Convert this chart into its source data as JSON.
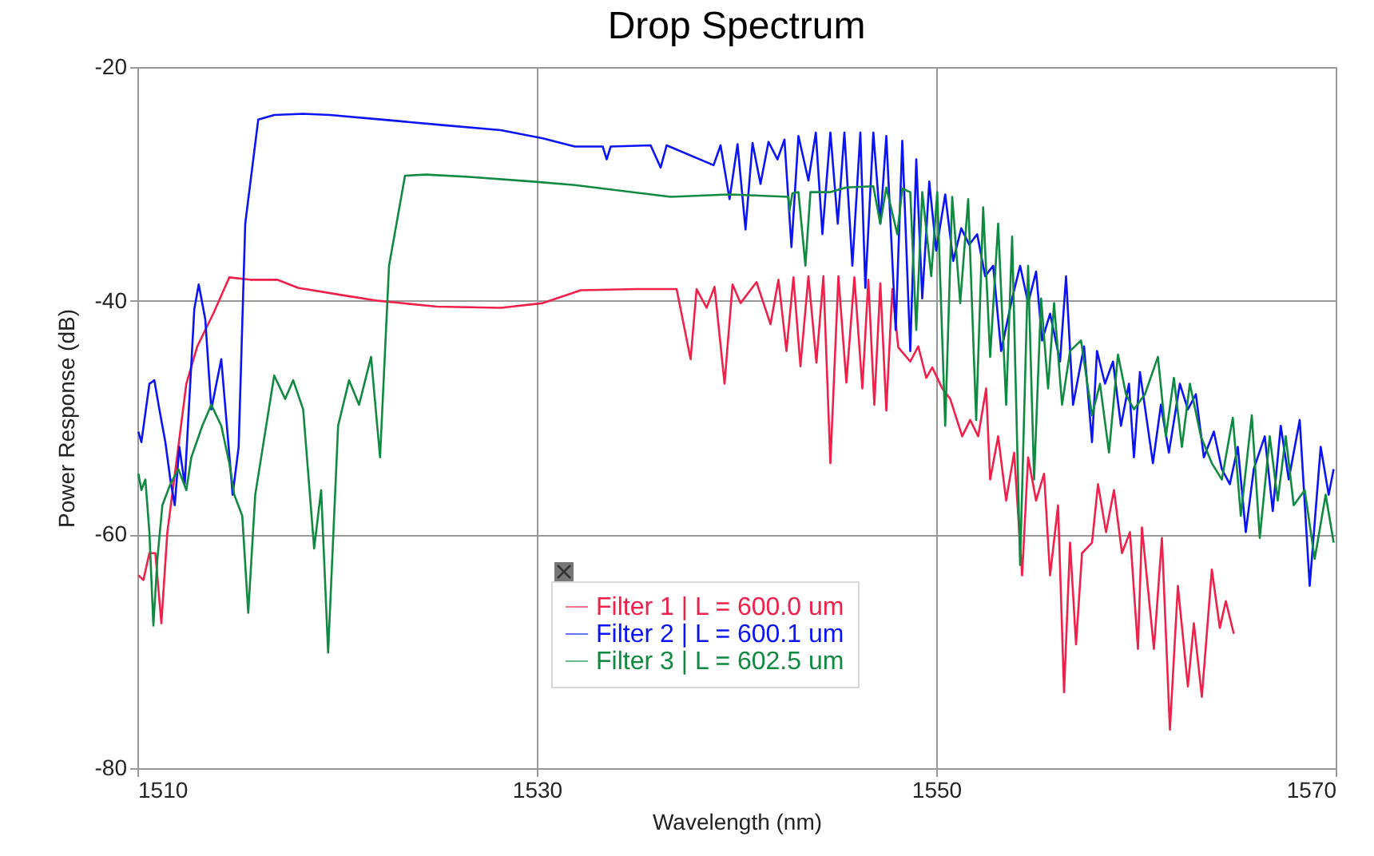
{
  "chart_data": {
    "type": "line",
    "title": "Drop Spectrum",
    "xlabel": "Wavelength (nm)",
    "ylabel": "Power Response (dB)",
    "xlim": [
      1510,
      1570
    ],
    "xticks": [
      1510,
      1530,
      1550,
      1570
    ],
    "ylim": [
      -80,
      -20
    ],
    "yticks": [
      -80,
      -60,
      -40,
      -20
    ],
    "grid": true,
    "legend": "bottom",
    "marker": "none",
    "line_style": "solid",
    "series": [
      {
        "name": "Filter 1 | L = 600.0 um",
        "color": "#f0204a",
        "x": [
          1510.05,
          1510.3,
          1510.6,
          1510.9,
          1511.2,
          1511.5,
          1512.05,
          1512.45,
          1513.0,
          1513.8,
          1514.6,
          1515.65,
          1517.0,
          1518.05,
          1520.2,
          1522.05,
          1525.0,
          1528.2,
          1530.3,
          1532.2,
          1535.0,
          1537.0,
          1537.7,
          1538.0,
          1538.5,
          1538.9,
          1539.4,
          1539.8,
          1540.2,
          1541.0,
          1541.7,
          1542.1,
          1542.5,
          1542.85,
          1543.2,
          1543.6,
          1544.0,
          1544.35,
          1544.7,
          1545.1,
          1545.5,
          1545.9,
          1546.3,
          1546.6,
          1546.9,
          1547.2,
          1547.5,
          1547.8,
          1548.1,
          1548.7,
          1549.1,
          1549.5,
          1549.8,
          1550.3,
          1550.7,
          1551.3,
          1551.7,
          1552.1,
          1552.5,
          1552.7,
          1553.1,
          1553.5,
          1553.9,
          1554.3,
          1554.6,
          1555.0,
          1555.4,
          1555.7,
          1556.1,
          1556.4,
          1556.7,
          1557.0,
          1557.3,
          1557.8,
          1558.1,
          1558.5,
          1558.9,
          1559.3,
          1559.7,
          1560.1,
          1560.3,
          1560.9,
          1561.3,
          1561.7,
          1562.1,
          1562.6,
          1562.9,
          1563.3,
          1563.8,
          1564.2,
          1564.5,
          1564.9
        ],
        "values": [
          -63.5,
          -63.9,
          -61.6,
          -61.6,
          -67.6,
          -59.8,
          -52.5,
          -47.1,
          -43.9,
          -41.1,
          -38.0,
          -38.2,
          -38.2,
          -38.9,
          -39.5,
          -40.0,
          -40.5,
          -40.6,
          -40.2,
          -39.1,
          -39.0,
          -39.0,
          -45.0,
          -39.0,
          -40.6,
          -38.8,
          -47.1,
          -38.6,
          -40.2,
          -38.4,
          -42.0,
          -38.2,
          -44.3,
          -38.0,
          -45.6,
          -37.9,
          -45.3,
          -37.9,
          -53.9,
          -37.9,
          -47.0,
          -38.0,
          -47.5,
          -38.2,
          -48.9,
          -38.5,
          -49.4,
          -39.0,
          -44.0,
          -45.2,
          -43.9,
          -46.6,
          -45.7,
          -47.5,
          -48.4,
          -51.6,
          -50.2,
          -51.6,
          -47.5,
          -55.3,
          -51.6,
          -57.1,
          -53.0,
          -63.5,
          -53.4,
          -57.1,
          -54.8,
          -63.5,
          -57.5,
          -73.5,
          -60.7,
          -69.4,
          -61.6,
          -60.7,
          -55.7,
          -59.8,
          -56.2,
          -61.6,
          -59.8,
          -69.8,
          -59.4,
          -69.8,
          -60.3,
          -76.7,
          -64.4,
          -73.0,
          -67.6,
          -73.9,
          -63.0,
          -68.0,
          -65.7,
          -68.5
        ]
      },
      {
        "name": "Filter 2 | L = 600.1 um",
        "color": "#0a14f5",
        "x": [
          1510.05,
          1510.2,
          1510.6,
          1510.85,
          1511.1,
          1511.4,
          1511.65,
          1511.87,
          1512.1,
          1512.37,
          1512.85,
          1513.07,
          1513.4,
          1513.7,
          1514.2,
          1514.77,
          1515.07,
          1515.4,
          1516.05,
          1516.85,
          1518.3,
          1519.65,
          1522.3,
          1525.5,
          1528.2,
          1530.3,
          1531.9,
          1533.3,
          1533.5,
          1533.7,
          1535.7,
          1536.2,
          1536.5,
          1538.85,
          1539.2,
          1539.65,
          1540.05,
          1540.45,
          1540.8,
          1541.2,
          1541.6,
          1542.05,
          1542.4,
          1542.75,
          1543.1,
          1543.6,
          1543.97,
          1544.3,
          1544.7,
          1545.07,
          1545.4,
          1545.8,
          1546.2,
          1546.45,
          1546.85,
          1547.2,
          1547.5,
          1547.97,
          1548.3,
          1548.7,
          1549.0,
          1549.3,
          1549.65,
          1550.0,
          1550.45,
          1550.85,
          1551.25,
          1551.65,
          1552.05,
          1552.45,
          1552.85,
          1553.25,
          1553.8,
          1554.2,
          1554.6,
          1555.0,
          1555.3,
          1555.7,
          1556.2,
          1556.5,
          1556.85,
          1557.4,
          1557.8,
          1558.05,
          1558.45,
          1558.85,
          1559.25,
          1559.65,
          1559.9,
          1560.2,
          1560.85,
          1561.25,
          1561.65,
          1562.2,
          1562.6,
          1563.0,
          1563.4,
          1563.9,
          1564.3,
          1564.7,
          1565.1,
          1565.5,
          1565.9,
          1566.45,
          1566.85,
          1567.25,
          1567.65,
          1568.2,
          1568.7,
          1569.25,
          1569.65,
          1569.9
        ],
        "values": [
          -51.2,
          -52.1,
          -47.1,
          -46.8,
          -49.3,
          -52.1,
          -55.3,
          -57.5,
          -52.5,
          -55.7,
          -40.7,
          -38.6,
          -41.6,
          -49.3,
          -45.0,
          -56.6,
          -52.5,
          -33.4,
          -24.5,
          -24.1,
          -24.0,
          -24.1,
          -24.5,
          -25.0,
          -25.4,
          -26.1,
          -26.8,
          -26.8,
          -27.9,
          -26.8,
          -26.7,
          -28.6,
          -26.7,
          -28.4,
          -26.7,
          -31.3,
          -26.6,
          -33.9,
          -26.5,
          -30.0,
          -26.4,
          -27.9,
          -26.2,
          -35.4,
          -25.9,
          -29.7,
          -25.6,
          -34.3,
          -25.6,
          -33.4,
          -25.6,
          -37.0,
          -25.6,
          -38.9,
          -25.6,
          -33.4,
          -25.9,
          -42.5,
          -26.3,
          -44.3,
          -27.9,
          -39.8,
          -29.8,
          -35.7,
          -30.9,
          -36.6,
          -33.8,
          -35.2,
          -34.3,
          -37.9,
          -37.0,
          -44.3,
          -39.8,
          -37.0,
          -40.2,
          -37.5,
          -43.4,
          -41.1,
          -45.2,
          -37.9,
          -48.9,
          -43.9,
          -52.1,
          -44.3,
          -47.1,
          -45.2,
          -50.7,
          -47.1,
          -53.4,
          -46.1,
          -53.9,
          -48.9,
          -53.0,
          -47.1,
          -49.3,
          -48.0,
          -53.4,
          -51.2,
          -54.4,
          -55.7,
          -52.5,
          -59.8,
          -54.4,
          -51.6,
          -58.0,
          -50.7,
          -55.3,
          -50.2,
          -64.4,
          -52.5,
          -56.6,
          -54.4
        ]
      },
      {
        "name": "Filter 3 | L = 602.5 um",
        "color": "#108a40",
        "x": [
          1510.05,
          1510.2,
          1510.4,
          1510.6,
          1510.8,
          1511.0,
          1511.25,
          1511.65,
          1512.05,
          1512.45,
          1512.7,
          1513.25,
          1513.7,
          1514.2,
          1514.6,
          1514.85,
          1515.25,
          1515.55,
          1515.9,
          1516.85,
          1517.4,
          1517.8,
          1518.3,
          1518.85,
          1519.2,
          1519.55,
          1520.05,
          1520.6,
          1521.1,
          1521.7,
          1522.15,
          1522.6,
          1523.4,
          1524.45,
          1526.6,
          1529.8,
          1531.9,
          1536.7,
          1539.65,
          1542.6,
          1542.65,
          1542.8,
          1543.1,
          1543.45,
          1543.7,
          1544.7,
          1545.5,
          1546.85,
          1547.2,
          1547.5,
          1548.05,
          1548.3,
          1548.7,
          1549.0,
          1549.3,
          1549.75,
          1550.05,
          1550.45,
          1550.8,
          1551.2,
          1551.6,
          1552.0,
          1552.35,
          1552.7,
          1553.1,
          1553.5,
          1553.8,
          1554.2,
          1554.6,
          1554.9,
          1555.25,
          1555.6,
          1555.9,
          1556.3,
          1556.7,
          1557.25,
          1557.8,
          1558.2,
          1558.65,
          1559.1,
          1559.5,
          1559.9,
          1560.45,
          1561.1,
          1561.5,
          1561.9,
          1562.3,
          1562.7,
          1563.25,
          1563.8,
          1564.3,
          1564.85,
          1565.25,
          1565.8,
          1566.2,
          1566.7,
          1567.1,
          1567.5,
          1567.9,
          1568.45,
          1568.95,
          1569.5,
          1569.9
        ],
        "values": [
          -54.8,
          -56.2,
          -55.3,
          -59.8,
          -67.8,
          -62.1,
          -57.5,
          -55.7,
          -54.4,
          -56.2,
          -53.4,
          -50.7,
          -48.9,
          -50.7,
          -53.9,
          -56.6,
          -58.4,
          -66.7,
          -56.6,
          -46.4,
          -48.4,
          -46.8,
          -49.3,
          -61.2,
          -56.2,
          -70.1,
          -50.7,
          -46.8,
          -48.9,
          -44.8,
          -53.4,
          -37.0,
          -29.3,
          -29.2,
          -29.4,
          -29.8,
          -30.1,
          -31.1,
          -30.9,
          -31.1,
          -32.3,
          -30.8,
          -30.7,
          -37.0,
          -30.7,
          -30.7,
          -30.3,
          -30.2,
          -33.4,
          -30.3,
          -34.3,
          -30.4,
          -30.7,
          -42.5,
          -30.7,
          -37.9,
          -30.7,
          -50.7,
          -31.1,
          -40.2,
          -31.3,
          -50.2,
          -32.0,
          -44.8,
          -33.4,
          -48.9,
          -34.5,
          -62.6,
          -37.0,
          -55.3,
          -39.8,
          -47.5,
          -40.2,
          -48.9,
          -44.3,
          -43.4,
          -49.8,
          -47.1,
          -53.0,
          -44.6,
          -48.0,
          -49.3,
          -48.0,
          -44.8,
          -51.6,
          -46.6,
          -52.5,
          -47.1,
          -51.6,
          -53.9,
          -55.3,
          -50.0,
          -58.4,
          -49.8,
          -60.3,
          -51.6,
          -57.1,
          -51.6,
          -57.5,
          -56.2,
          -62.1,
          -56.6,
          -60.7
        ]
      }
    ]
  }
}
